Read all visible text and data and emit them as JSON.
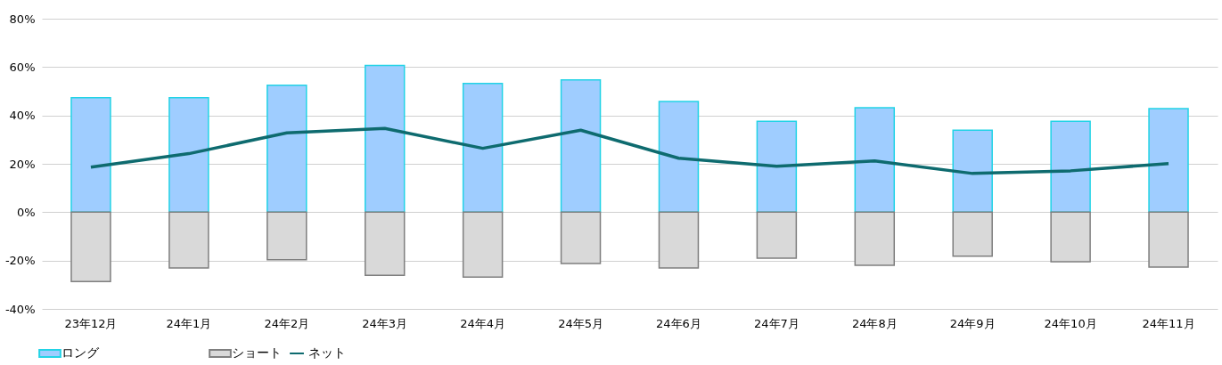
{
  "chart_data": {
    "type": "bar",
    "categories": [
      "23年12月",
      "24年1月",
      "24年2月",
      "24年3月",
      "24年4月",
      "24年5月",
      "24年6月",
      "24年7月",
      "24年8月",
      "24年9月",
      "24年10月",
      "24年11月"
    ],
    "series": [
      {
        "name": "ロング",
        "color": "#9fcdff",
        "values": [
          47.3,
          47.3,
          52.5,
          60.7,
          53.2,
          54.7,
          45.8,
          37.6,
          43.2,
          33.9,
          37.6,
          42.8
        ]
      },
      {
        "name": "ショート",
        "color": "#d9d9d9",
        "values": [
          -28.7,
          -23.1,
          -19.7,
          -26.1,
          -26.8,
          -21.2,
          -23.1,
          -19.0,
          -22.0,
          -18.2,
          -20.5,
          -22.7
        ]
      },
      {
        "name": "ネット",
        "type": "line",
        "color": "#0e6b6f",
        "values": [
          18.6,
          24.2,
          32.8,
          34.6,
          26.4,
          33.9,
          22.3,
          19.0,
          21.2,
          16.0,
          17.1,
          20.1
        ]
      }
    ],
    "ylim": [
      -40,
      80
    ],
    "yticks": [
      {
        "value": -40,
        "label": "-40%"
      },
      {
        "value": -20,
        "label": "-20%"
      },
      {
        "value": 0,
        "label": "0%"
      },
      {
        "value": 20,
        "label": "20%"
      },
      {
        "value": 40,
        "label": "40%"
      },
      {
        "value": 60,
        "label": "60%"
      },
      {
        "value": 80,
        "label": "80%"
      }
    ],
    "stacked": true,
    "grid": "y",
    "legend": "bottom",
    "marker": "none",
    "line_style": "solid"
  }
}
